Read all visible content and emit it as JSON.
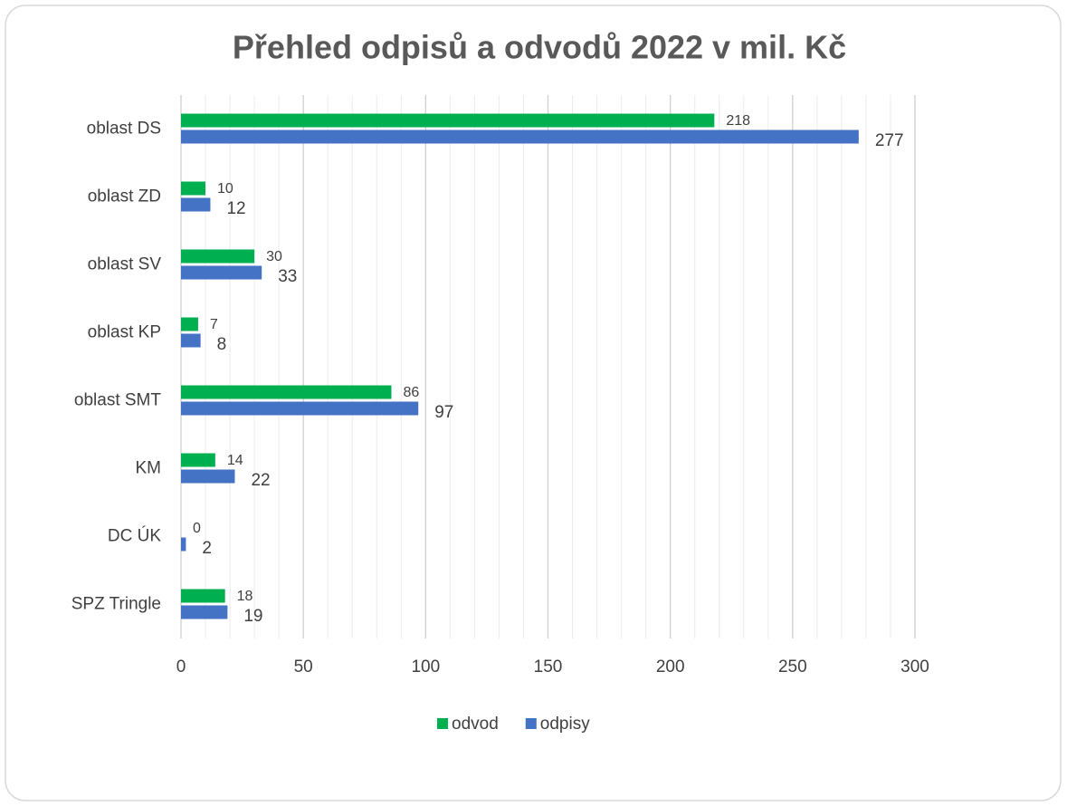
{
  "chart_data": {
    "type": "bar",
    "orientation": "horizontal",
    "title": "Přehled odpisů a odvodů 2022 v mil. Kč",
    "categories": [
      "oblast DS",
      "oblast ZD",
      "oblast SV",
      "oblast KP",
      "oblast SMT",
      "KM",
      "DC ÚK",
      "SPZ Tringle"
    ],
    "series": [
      {
        "name": "odvod",
        "color": "#00b050",
        "values": [
          218,
          10,
          30,
          7,
          86,
          14,
          0,
          18
        ]
      },
      {
        "name": "odpisy",
        "color": "#4472c4",
        "values": [
          277,
          12,
          33,
          8,
          97,
          22,
          2,
          19
        ]
      }
    ],
    "xlim": [
      0,
      300
    ],
    "xticks": [
      0,
      50,
      100,
      150,
      200,
      250,
      300
    ],
    "grid": true,
    "minor_grid": true,
    "legend": "bottom"
  }
}
